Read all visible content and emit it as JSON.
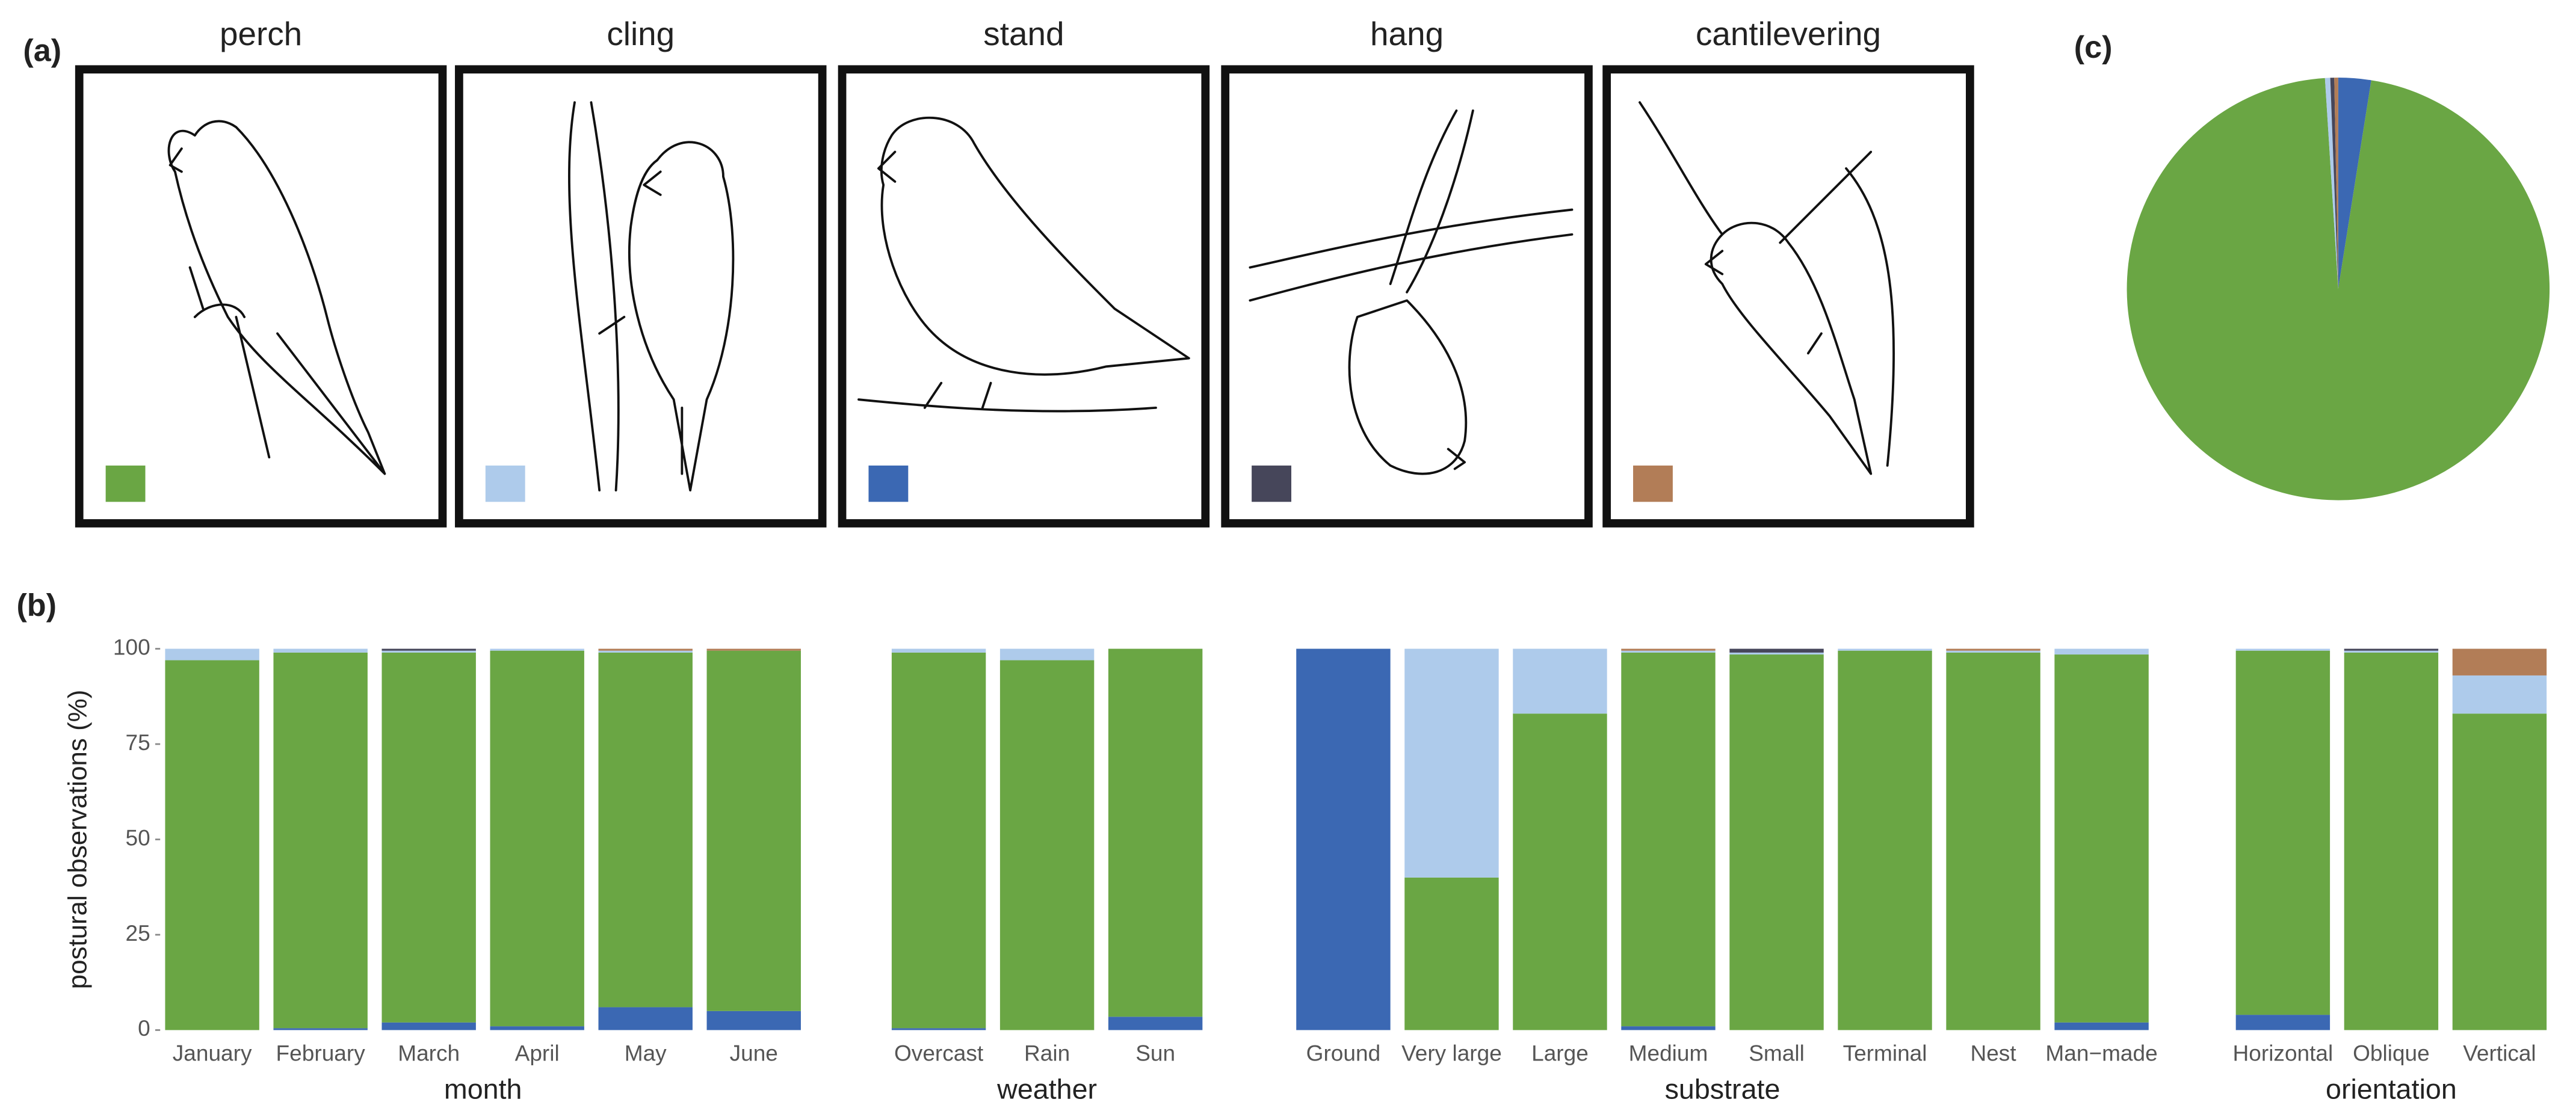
{
  "panels": [
    "(a)",
    "(b)",
    "(c)"
  ],
  "chart_data": [
    {
      "type": "bar",
      "stacked": true,
      "ylabel": "postural observations (%)",
      "ylim": [
        0,
        100
      ],
      "yticks": [
        0,
        25,
        50,
        75,
        100
      ],
      "groups": [
        {
          "label": "month",
          "categories": [
            "January",
            "February",
            "March",
            "April",
            "May",
            "June"
          ]
        },
        {
          "label": "weather",
          "categories": [
            "Overcast",
            "Rain",
            "Sun"
          ]
        },
        {
          "label": "substrate",
          "categories": [
            "Ground",
            "Very large",
            "Large",
            "Medium",
            "Small",
            "Terminal",
            "Nest",
            "Man−made"
          ]
        },
        {
          "label": "orientation",
          "categories": [
            "Horizontal",
            "Oblique",
            "Vertical"
          ]
        }
      ],
      "series": [
        {
          "name": "stand",
          "color": "#3b68b3",
          "values": [
            0,
            0.5,
            2,
            1,
            6,
            5,
            0.5,
            0,
            3.5,
            100,
            0,
            0,
            1,
            0,
            0,
            0,
            2,
            4,
            0,
            0
          ]
        },
        {
          "name": "perch",
          "color": "#6aa644",
          "values": [
            97,
            98.5,
            97,
            98.5,
            93,
            94.5,
            98.5,
            97,
            96.5,
            0,
            40,
            83,
            98,
            98.5,
            99.5,
            99,
            96.5,
            95.5,
            99,
            83
          ]
        },
        {
          "name": "cling",
          "color": "#aecbeb",
          "values": [
            3,
            1,
            0.5,
            0.5,
            0.5,
            0,
            1,
            3,
            0,
            0,
            60,
            17,
            0.5,
            0.5,
            0.5,
            0.5,
            1.5,
            0.5,
            0.5,
            10
          ]
        },
        {
          "name": "hang",
          "color": "#46465a",
          "values": [
            0,
            0,
            0.5,
            0,
            0,
            0,
            0,
            0,
            0,
            0,
            0,
            0,
            0,
            1,
            0,
            0,
            0,
            0,
            0.5,
            0
          ]
        },
        {
          "name": "cantilevering",
          "color": "#b27d57",
          "values": [
            0,
            0,
            0,
            0,
            0.5,
            0.5,
            0,
            0,
            0,
            0,
            0,
            0,
            0.5,
            0,
            0,
            0.5,
            0,
            0,
            0,
            7
          ]
        }
      ]
    },
    {
      "type": "pie",
      "values": [
        2.5,
        96.5,
        0.4,
        0.3,
        0.3
      ]
    }
  ]
}
